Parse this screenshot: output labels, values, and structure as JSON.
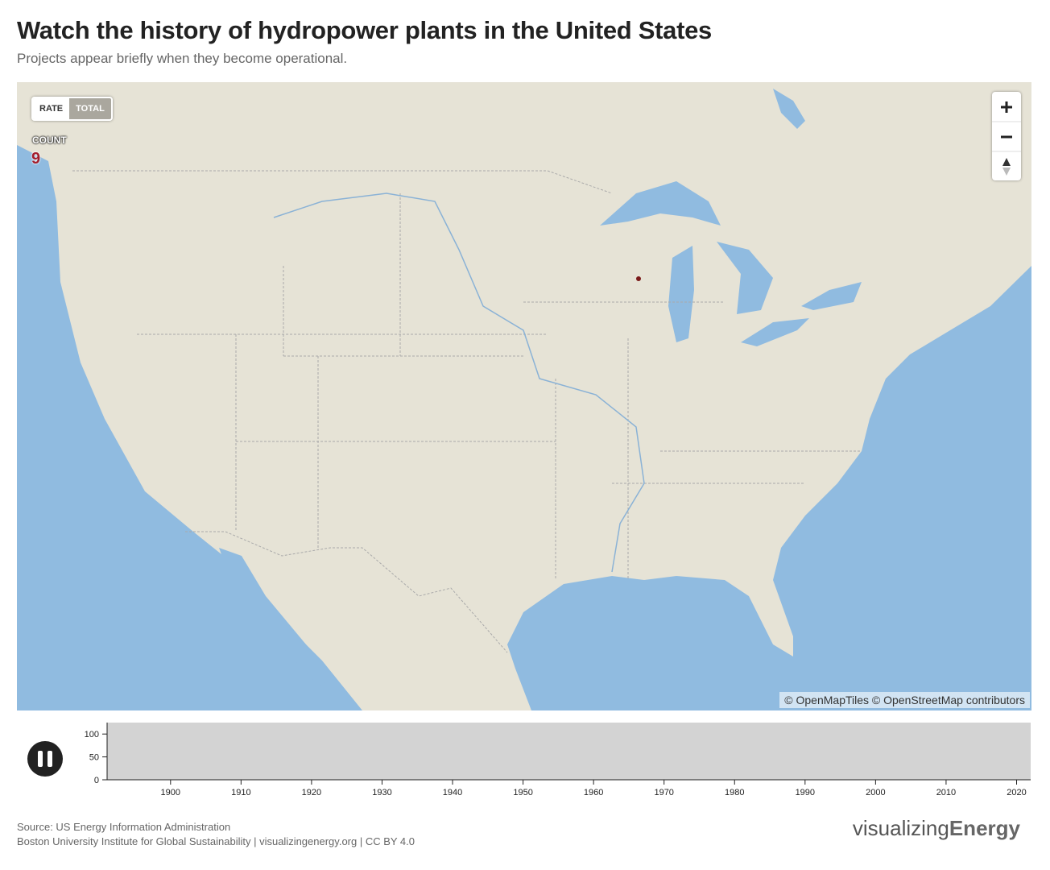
{
  "header": {
    "title": "Watch the history of hydropower plants in the United States",
    "subtitle": "Projects appear briefly when they become operational."
  },
  "toggle": {
    "rate": "RATE",
    "total": "TOTAL"
  },
  "counter": {
    "label": "COUNT",
    "value": 9
  },
  "map": {
    "attribution": "© OpenMapTiles © OpenStreetMap contributors"
  },
  "timeline": {
    "ylim": [
      0,
      125
    ],
    "yticks": [
      0,
      50,
      100
    ],
    "xlim": [
      1891,
      2022
    ],
    "xticks": [
      1900,
      1910,
      1920,
      1930,
      1940,
      1950,
      1960,
      1970,
      1980,
      1990,
      2000,
      2010,
      2020
    ]
  },
  "footer": {
    "source": "Source: US Energy Information Administration",
    "credit": "Boston University Institute for Global Sustainability | visualizingenergy.org | CC BY 4.0",
    "logo_light": "visualizing",
    "logo_bold": "Energy"
  }
}
